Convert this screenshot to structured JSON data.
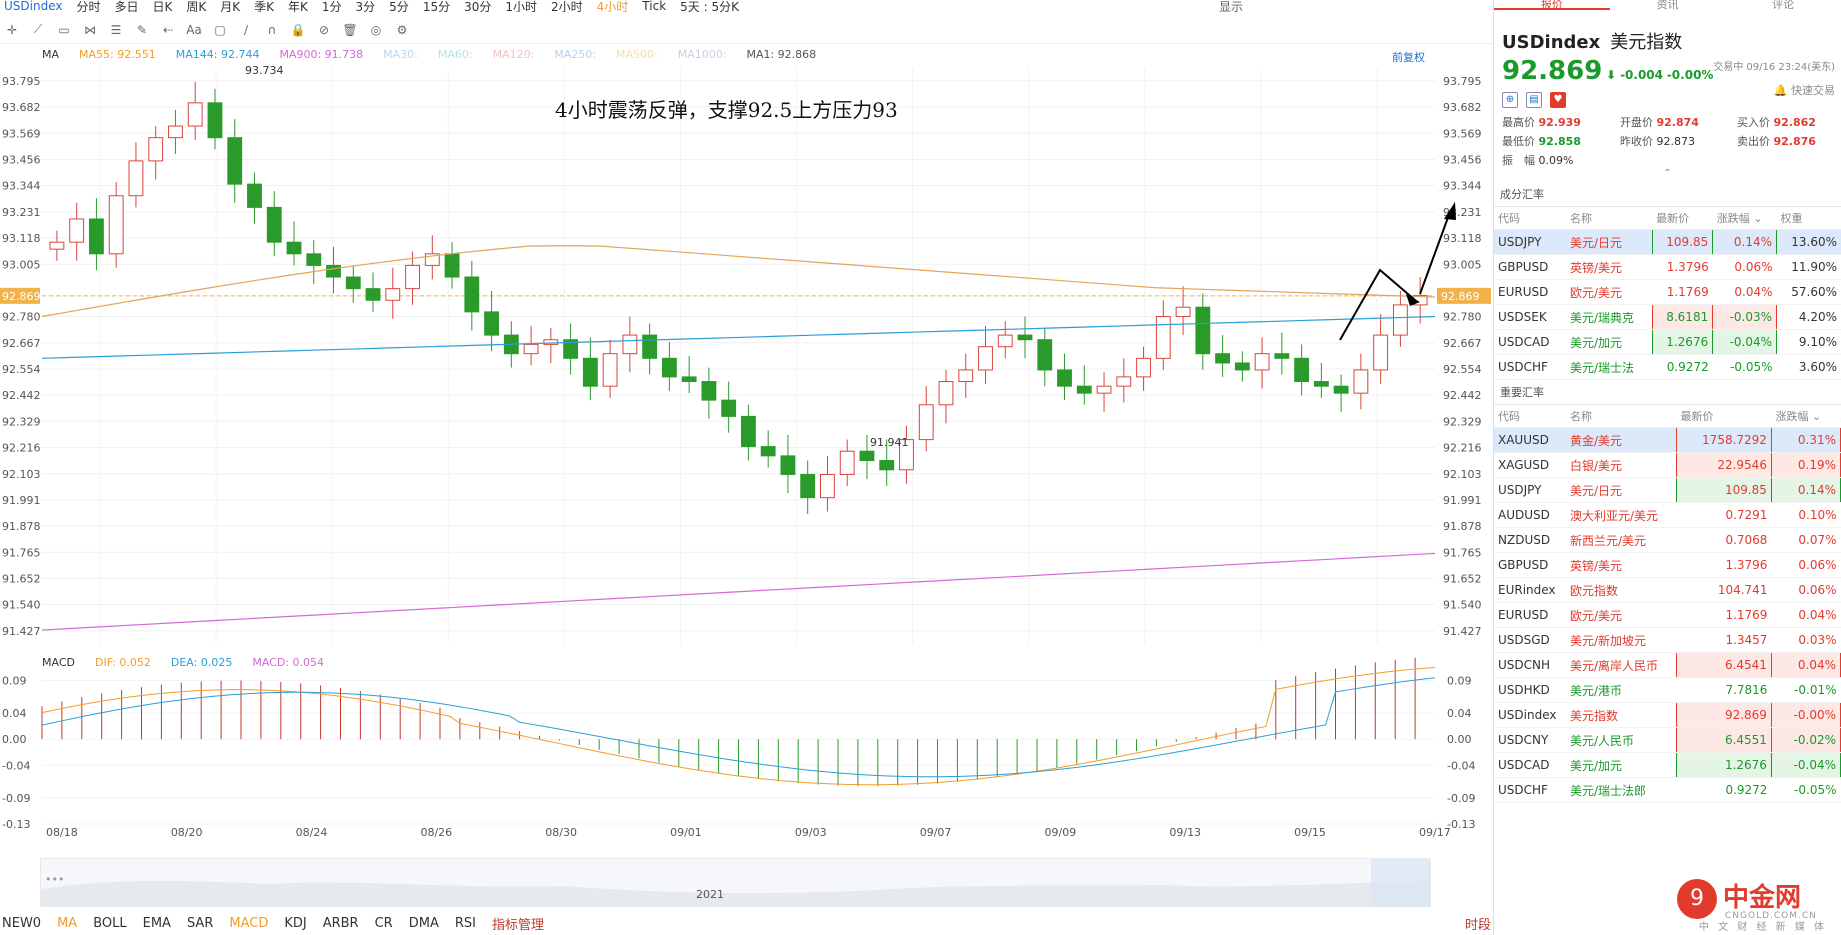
{
  "topbar": {
    "symbol": "USDindex",
    "periods": [
      "分时",
      "多日",
      "日K",
      "周K",
      "月K",
      "季K",
      "年K",
      "1分",
      "3分",
      "5分",
      "15分",
      "30分",
      "1小时",
      "2小时",
      "4小时",
      "Tick",
      "5天 : 5分K"
    ],
    "active_period": "4小时",
    "right": [
      "显示"
    ]
  },
  "main_legend": {
    "ma_label": "MA",
    "items": [
      {
        "text": "MA55: 92.551",
        "color": "#f29d2c"
      },
      {
        "text": "MA144: 92.744",
        "color": "#2a9fd6"
      },
      {
        "text": "MA900: 91.738",
        "color": "#d36ad6"
      },
      {
        "text": "MA30:",
        "color": "#b8d7f0"
      },
      {
        "text": "MA60:",
        "color": "#b8e0e8"
      },
      {
        "text": "MA120:",
        "color": "#f3c0c0"
      },
      {
        "text": "MA250:",
        "color": "#b8d0f0"
      },
      {
        "text": "MA500:",
        "color": "#f3e0a0"
      },
      {
        "text": "MA1000:",
        "color": "#c8d0e0"
      },
      {
        "text": "MA1: 92.868",
        "color": "#555555"
      }
    ],
    "pre_adjust": "前复权"
  },
  "annotation": "4小时震荡反弹，支撑92.5上方压力93",
  "y_axis": [
    "93.795",
    "93.682",
    "93.569",
    "93.456",
    "93.344",
    "93.231",
    "93.118",
    "93.005",
    "92.869",
    "92.780",
    "92.667",
    "92.554",
    "92.442",
    "92.329",
    "92.216",
    "92.103",
    "91.991",
    "91.878",
    "91.765",
    "91.652",
    "91.540",
    "91.427"
  ],
  "current_price_tag": "92.869",
  "high_label": "93.734",
  "low_label": "91.941",
  "macd_legend": {
    "label": "MACD",
    "items": [
      {
        "text": "DIF: 0.052",
        "color": "#f29d2c"
      },
      {
        "text": "DEA: 0.025",
        "color": "#2a9fd6"
      },
      {
        "text": "MACD: 0.054",
        "color": "#d36ad6"
      }
    ]
  },
  "macd_axis": [
    "0.09",
    "0.04",
    "0.00",
    "-0.04",
    "-0.09",
    "-0.13"
  ],
  "x_axis": [
    "08/18",
    "08/20",
    "08/24",
    "08/26",
    "08/30",
    "09/01",
    "09/03",
    "09/07",
    "09/09",
    "09/13",
    "09/15",
    "09/17"
  ],
  "navigator_year": "2021",
  "indicators": [
    "NEW0",
    "MA",
    "BOLL",
    "EMA",
    "SAR",
    "MACD",
    "KDJ",
    "ARBR",
    "CR",
    "DMA",
    "RSI"
  ],
  "indicators_active": [
    "MA",
    "MACD"
  ],
  "indicator_manager": "指标管理",
  "period_link": "时段",
  "panel": {
    "tabs": [
      "报价",
      "资讯",
      "评论"
    ],
    "symbol": "USDindex",
    "name": "美元指数",
    "price": "92.869",
    "change": "-0.004",
    "change_pct": "-0.00%",
    "time": "交易中 09/16 23:24(美东)",
    "quick_trade": "快速交易",
    "stats": [
      {
        "label": "最高价",
        "value": "92.939",
        "cls": "v-red"
      },
      {
        "label": "开盘价",
        "value": "92.874",
        "cls": "v-red"
      },
      {
        "label": "买入价",
        "value": "92.862",
        "cls": "v-red"
      },
      {
        "label": "最低价",
        "value": "92.858",
        "cls": "v-grn"
      },
      {
        "label": "昨收价",
        "value": "92.873",
        "cls": ""
      },
      {
        "label": "卖出价",
        "value": "92.876",
        "cls": "v-red"
      },
      {
        "label": "振　幅",
        "value": "0.09%",
        "cls": ""
      }
    ],
    "components_title": "成分汇率",
    "components_headers": [
      "代码",
      "名称",
      "最新价",
      "涨跌幅",
      "权重"
    ],
    "components": [
      {
        "code": "USDJPY",
        "name": "美元/日元",
        "price": "109.85",
        "chg": "0.14%",
        "w": "13.60%",
        "dir": "up",
        "box": "g",
        "sel": true
      },
      {
        "code": "GBPUSD",
        "name": "英镑/美元",
        "price": "1.3796",
        "chg": "0.06%",
        "w": "11.90%",
        "dir": "up",
        "box": ""
      },
      {
        "code": "EURUSD",
        "name": "欧元/美元",
        "price": "1.1769",
        "chg": "0.04%",
        "w": "57.60%",
        "dir": "up",
        "box": ""
      },
      {
        "code": "USDSEK",
        "name": "美元/瑞典克",
        "price": "8.6181",
        "chg": "-0.03%",
        "w": "4.20%",
        "dir": "dn",
        "box": "r"
      },
      {
        "code": "USDCAD",
        "name": "美元/加元",
        "price": "1.2676",
        "chg": "-0.04%",
        "w": "9.10%",
        "dir": "dn",
        "box": "g"
      },
      {
        "code": "USDCHF",
        "name": "美元/瑞士法",
        "price": "0.9272",
        "chg": "-0.05%",
        "w": "3.60%",
        "dir": "dn",
        "box": ""
      }
    ],
    "major_title": "重要汇率",
    "major_headers": [
      "代码",
      "名称",
      "最新价",
      "涨跌幅"
    ],
    "major": [
      {
        "code": "XAUUSD",
        "name": "黄金/美元",
        "price": "1758.7292",
        "chg": "0.31%",
        "dir": "up",
        "box": "r",
        "sel": true
      },
      {
        "code": "XAGUSD",
        "name": "白银/美元",
        "price": "22.9546",
        "chg": "0.19%",
        "dir": "up",
        "box": "r"
      },
      {
        "code": "USDJPY",
        "name": "美元/日元",
        "price": "109.85",
        "chg": "0.14%",
        "dir": "up",
        "box": "g"
      },
      {
        "code": "AUDUSD",
        "name": "澳大利亚元/美元",
        "price": "0.7291",
        "chg": "0.10%",
        "dir": "up",
        "box": ""
      },
      {
        "code": "NZDUSD",
        "name": "新西兰元/美元",
        "price": "0.7068",
        "chg": "0.07%",
        "dir": "up",
        "box": ""
      },
      {
        "code": "GBPUSD",
        "name": "英镑/美元",
        "price": "1.3796",
        "chg": "0.06%",
        "dir": "up",
        "box": ""
      },
      {
        "code": "EURindex",
        "name": "欧元指数",
        "price": "104.741",
        "chg": "0.06%",
        "dir": "up",
        "box": ""
      },
      {
        "code": "EURUSD",
        "name": "欧元/美元",
        "price": "1.1769",
        "chg": "0.04%",
        "dir": "up",
        "box": ""
      },
      {
        "code": "USDSGD",
        "name": "美元/新加坡元",
        "price": "1.3457",
        "chg": "0.03%",
        "dir": "up",
        "box": ""
      },
      {
        "code": "USDCNH",
        "name": "美元/离岸人民币",
        "price": "6.4541",
        "chg": "0.04%",
        "dir": "up",
        "box": "r"
      },
      {
        "code": "USDHKD",
        "name": "美元/港币",
        "price": "7.7816",
        "chg": "-0.01%",
        "dir": "dn",
        "box": ""
      },
      {
        "code": "USDindex",
        "name": "美元指数",
        "price": "92.869",
        "chg": "-0.00%",
        "dir": "up",
        "box": "r"
      },
      {
        "code": "USDCNY",
        "name": "美元/人民币",
        "price": "6.4551",
        "chg": "-0.02%",
        "dir": "dn",
        "box": "r"
      },
      {
        "code": "USDCAD",
        "name": "美元/加元",
        "price": "1.2676",
        "chg": "-0.04%",
        "dir": "dn",
        "box": "g"
      },
      {
        "code": "USDCHF",
        "name": "美元/瑞士法郎",
        "price": "0.9272",
        "chg": "-0.05%",
        "dir": "dn",
        "box": ""
      }
    ],
    "logo": {
      "name": "中金网",
      "domain": "CNGOLD.COM.CN",
      "tagline": "中 文 财 经 新 媒 体"
    }
  },
  "chart_data": {
    "type": "candlestick",
    "title": "",
    "y_range": [
      91.37,
      93.85
    ],
    "x_labels": [
      "08/18",
      "08/20",
      "08/24",
      "08/26",
      "08/30",
      "09/01",
      "09/03",
      "09/07",
      "09/09",
      "09/13",
      "09/15",
      "09/17"
    ],
    "close_path": [
      93.1,
      93.2,
      93.05,
      93.3,
      93.45,
      93.55,
      93.6,
      93.7,
      93.55,
      93.35,
      93.25,
      93.1,
      93.05,
      93.0,
      92.95,
      92.9,
      92.85,
      92.9,
      93.0,
      93.05,
      92.95,
      92.8,
      92.7,
      92.62,
      92.66,
      92.68,
      92.6,
      92.48,
      92.62,
      92.7,
      92.6,
      92.52,
      92.5,
      92.42,
      92.35,
      92.22,
      92.18,
      92.1,
      92.0,
      92.1,
      92.2,
      92.16,
      92.12,
      92.25,
      92.4,
      92.5,
      92.55,
      92.65,
      92.7,
      92.68,
      92.55,
      92.48,
      92.45,
      92.48,
      92.52,
      92.6,
      92.78,
      92.82,
      92.62,
      92.58,
      92.55,
      92.62,
      92.6,
      92.5,
      92.48,
      92.45,
      92.55,
      92.7,
      92.83,
      92.87
    ]
  }
}
